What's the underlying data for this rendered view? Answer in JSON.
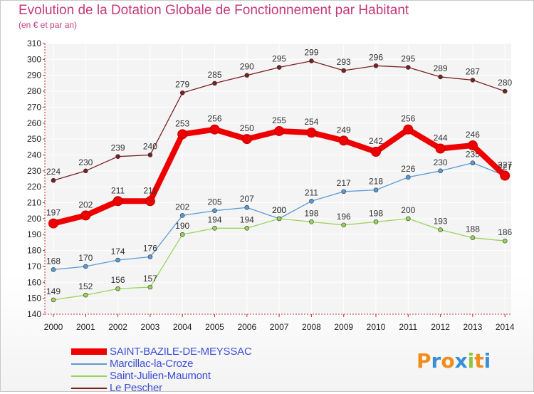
{
  "header": {
    "title": "Evolution de la Dotation Globale de Fonctionnement par Habitant",
    "subtitle": "(en € et par an)"
  },
  "logo": {
    "text": "Proxiti"
  },
  "chart_data": {
    "type": "line",
    "x": [
      "2000",
      "2001",
      "2002",
      "2003",
      "2004",
      "2005",
      "2006",
      "2007",
      "2008",
      "2009",
      "2010",
      "2011",
      "2012",
      "2013",
      "2014"
    ],
    "ylim": [
      140,
      310
    ],
    "yticks": [
      140,
      150,
      160,
      170,
      180,
      190,
      200,
      210,
      220,
      230,
      240,
      250,
      260,
      270,
      280,
      290,
      300,
      310
    ],
    "grid": true,
    "legend": "bottom-left",
    "series": [
      {
        "name": "Le Pescher",
        "color": "#7b2020",
        "values": [
          224,
          230,
          239,
          240,
          279,
          285,
          290,
          295,
          299,
          293,
          296,
          295,
          289,
          287,
          280
        ]
      },
      {
        "name": "Marcillac-la-Croze",
        "color": "#5b9bd5",
        "values": [
          168,
          170,
          174,
          176,
          202,
          205,
          207,
          200,
          211,
          217,
          218,
          226,
          230,
          235,
          227
        ]
      },
      {
        "name": "Saint-Julien-Maumont",
        "color": "#99d45a",
        "values": [
          149,
          152,
          156,
          157,
          190,
          194,
          194,
          200,
          198,
          196,
          198,
          200,
          193,
          188,
          186
        ]
      },
      {
        "name": "SAINT-BAZILE-DE-MEYSSAC",
        "color": "#ee0000",
        "values": [
          197,
          202,
          211,
          211,
          253,
          256,
          250,
          255,
          254,
          249,
          242,
          256,
          244,
          246,
          227
        ]
      }
    ],
    "legend_order": [
      "SAINT-BAZILE-DE-MEYSSAC",
      "Marcillac-la-Croze",
      "Saint-Julien-Maumont",
      "Le Pescher"
    ]
  }
}
